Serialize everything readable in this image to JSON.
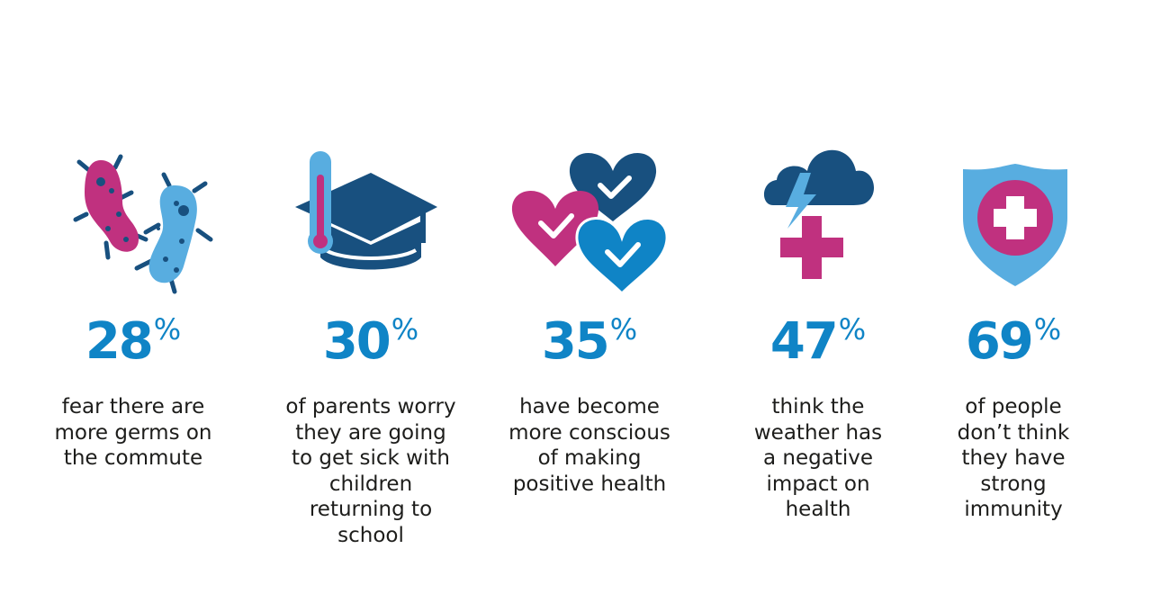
{
  "colors": {
    "number_blue": "#0f84c6",
    "navy": "#18507f",
    "magenta": "#c0317f",
    "light_blue": "#58ade0",
    "text": "#1d1d1b",
    "background": "#ffffff"
  },
  "stats": [
    {
      "value": "28",
      "unit": "%",
      "icon": "germs-icon",
      "caption_lines": [
        "fear there are",
        "more germs on",
        "the commute"
      ]
    },
    {
      "value": "30",
      "unit": "%",
      "icon": "graduation-cap-thermometer-icon",
      "caption_lines": [
        "of parents worry",
        "they are going",
        "to get sick with",
        "children",
        "returning to",
        "school"
      ]
    },
    {
      "value": "35",
      "unit": "%",
      "icon": "hearts-checkmarks-icon",
      "caption_lines": [
        "have become",
        "more conscious",
        "of making",
        "positive health"
      ]
    },
    {
      "value": "47",
      "unit": "%",
      "icon": "storm-cloud-medical-cross-icon",
      "caption_lines": [
        "think the",
        "weather has",
        "a negative",
        "impact on",
        "health"
      ]
    },
    {
      "value": "69",
      "unit": "%",
      "icon": "shield-medical-cross-icon",
      "caption_lines": [
        "of people",
        "don’t think",
        "they have",
        "strong",
        "immunity"
      ]
    }
  ]
}
